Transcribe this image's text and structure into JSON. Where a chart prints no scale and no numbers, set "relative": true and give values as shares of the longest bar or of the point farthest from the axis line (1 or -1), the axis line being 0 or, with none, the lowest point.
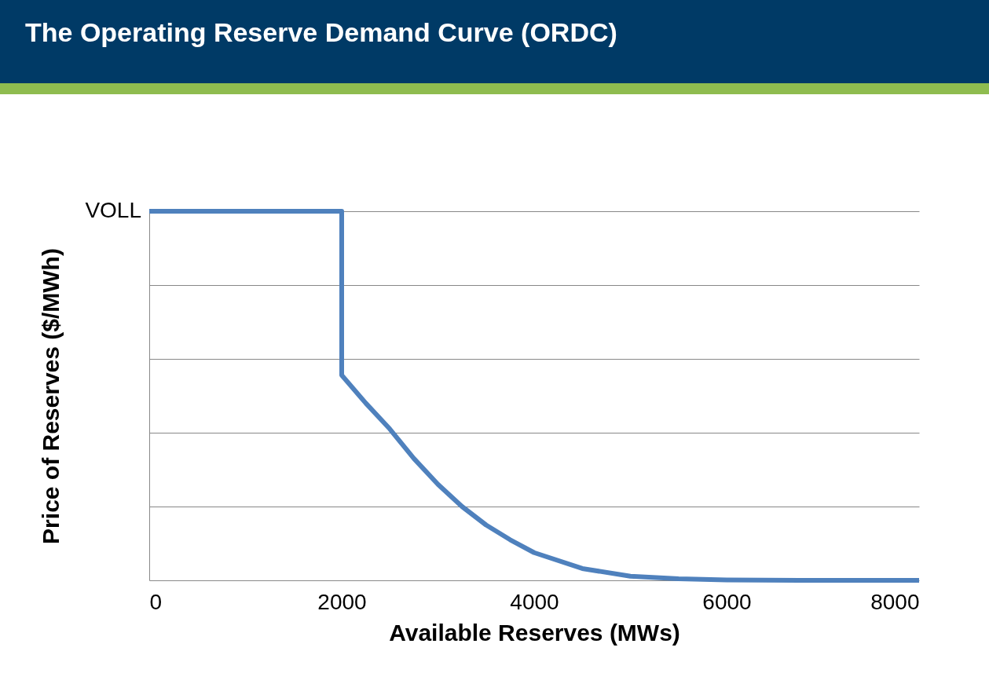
{
  "chart_data": {
    "type": "line",
    "title": "The Operating Reserve Demand Curve (ORDC)",
    "xlabel": "Available Reserves (MWs)",
    "ylabel": "Price of Reserves ($/MWh)",
    "relative": true,
    "grid": "y",
    "marker": "none",
    "line_style": "solid",
    "legend": false,
    "x": [
      0,
      2000,
      2000,
      2250,
      2500,
      2750,
      3000,
      3250,
      3500,
      3750,
      4000,
      4500,
      5000,
      5500,
      6000,
      7000,
      8000
    ],
    "xlim": [
      0,
      8000
    ],
    "xticks": [
      0,
      2000,
      4000,
      6000,
      8000
    ],
    "series": [
      {
        "color": "#4f81bd",
        "values": [
          1,
          1,
          0.556,
          0.48,
          0.41,
          0.33,
          0.26,
          0.2,
          0.15,
          0.11,
          0.075,
          0.032,
          0.011,
          0.004,
          0.001,
          0,
          0
        ]
      }
    ],
    "annotations": [
      {
        "text": "VOLL",
        "x": 0,
        "y": 1
      }
    ]
  }
}
